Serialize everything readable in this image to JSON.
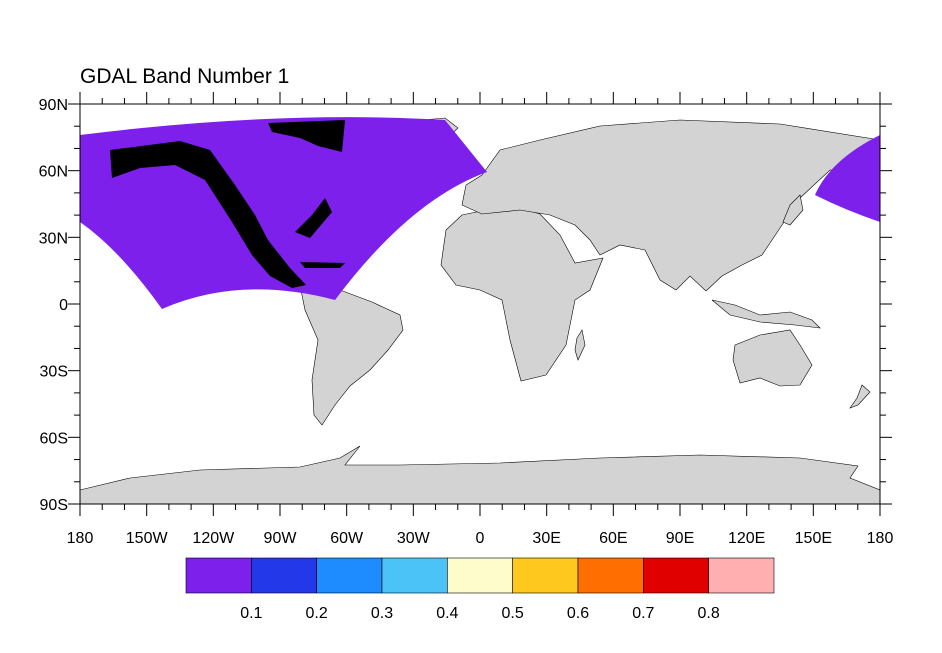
{
  "title": "GDAL Band Number 1",
  "map": {
    "projection": "cylindrical equidistant",
    "lon_range": [
      -180,
      180
    ],
    "lat_range": [
      -90,
      90
    ],
    "land_color": "#d3d3d3",
    "ocean_color": "#ffffff",
    "data_color": "#7d20eb",
    "x_tick_labels": [
      "180",
      "150W",
      "120W",
      "90W",
      "60W",
      "30W",
      "0",
      "30E",
      "60E",
      "90E",
      "120E",
      "150E",
      "180"
    ],
    "y_tick_labels": [
      "90N",
      "60N",
      "30N",
      "0",
      "30S",
      "60S",
      "90S"
    ]
  },
  "colorbar": {
    "colors": [
      "#7d20eb",
      "#2338e8",
      "#1e8cff",
      "#4bc3f7",
      "#fffccc",
      "#ffc81e",
      "#ff6e00",
      "#e00000",
      "#ffafaf"
    ],
    "labels": [
      "0.1",
      "0.2",
      "0.3",
      "0.4",
      "0.5",
      "0.6",
      "0.7",
      "0.8"
    ]
  }
}
